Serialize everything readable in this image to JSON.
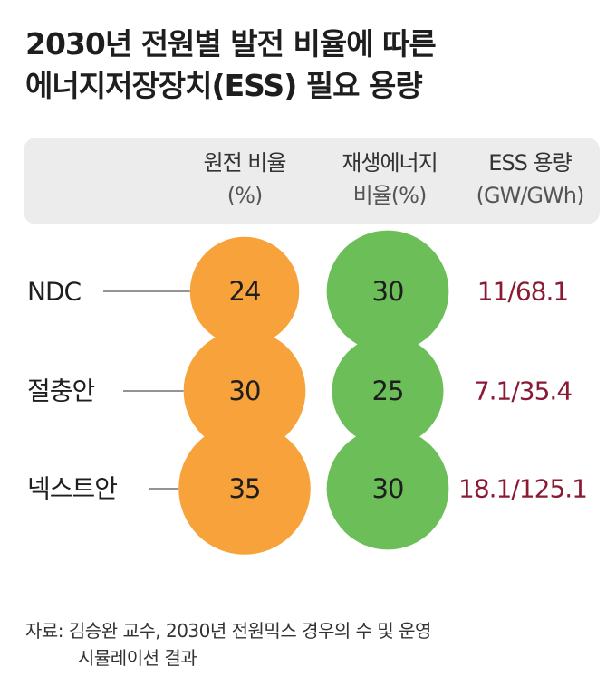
{
  "title": {
    "line1": "2030년 전원별 발전 비율에 따른",
    "line2": "에너지저장장치(ESS) 필요 용량"
  },
  "columns": {
    "nuclear": {
      "label": "원전 비율",
      "unit": "(%)"
    },
    "renewable": {
      "label": "재생에너지",
      "unit": "비율(%)"
    },
    "ess": {
      "label": "ESS 용량",
      "unit": "(GW/GWh)"
    }
  },
  "source": {
    "line1": "자료: 김승완 교수, 2030년 전원믹스 경우의 수 및 운영",
    "line2": "시뮬레이션 결과"
  },
  "colors": {
    "nuclear": "#f7a23b",
    "renewable": "#6cbf58",
    "ess_text": "#8a1a33",
    "connector": "#555555"
  },
  "chart_data": {
    "type": "table",
    "scenarios": [
      "NDC",
      "절충안",
      "넥스트안"
    ],
    "series": [
      {
        "name": "원전 비율(%)",
        "values": [
          24,
          30,
          35
        ]
      },
      {
        "name": "재생에너지 비율(%)",
        "values": [
          30,
          25,
          30
        ]
      },
      {
        "name": "ESS 용량(GW/GWh)",
        "values": [
          "11/68.1",
          "7.1/35.4",
          "18.1/125.1"
        ]
      }
    ]
  }
}
